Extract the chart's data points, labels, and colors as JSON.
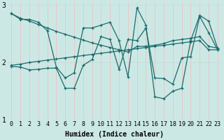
{
  "xlabel": "Humidex (Indice chaleur)",
  "background_color": "#cce8e5",
  "grid_color_v": "#e8c8c8",
  "grid_color_h": "#c8dcd8",
  "line_color": "#1a6b6b",
  "xlim": [
    -0.5,
    23.5
  ],
  "ylim": [
    1,
    3.05
  ],
  "yticks": [
    1,
    2,
    3
  ],
  "xticks": [
    0,
    1,
    2,
    3,
    4,
    5,
    6,
    7,
    8,
    9,
    10,
    11,
    12,
    13,
    14,
    15,
    16,
    17,
    18,
    19,
    20,
    21,
    22,
    23
  ],
  "series_smooth": [
    [
      2.85,
      2.77,
      2.72,
      2.66,
      2.6,
      2.54,
      2.49,
      2.44,
      2.39,
      2.34,
      2.3,
      2.26,
      2.22,
      2.18,
      2.28,
      2.28,
      2.3,
      2.33,
      2.38,
      2.4,
      2.42,
      2.45,
      2.28,
      2.25
    ],
    [
      1.95,
      1.97,
      2.0,
      2.02,
      2.04,
      2.06,
      2.08,
      2.1,
      2.12,
      2.14,
      2.16,
      2.18,
      2.2,
      2.22,
      2.24,
      2.26,
      2.28,
      2.3,
      2.32,
      2.34,
      2.36,
      2.38,
      2.22,
      2.22
    ]
  ],
  "series_zigzag": [
    [
      2.85,
      2.75,
      2.75,
      2.7,
      2.55,
      1.92,
      1.73,
      1.82,
      2.6,
      2.6,
      2.65,
      2.7,
      2.38,
      1.75,
      2.95,
      2.65,
      1.4,
      1.37,
      1.5,
      1.55,
      2.38,
      2.82,
      2.72,
      2.25
    ],
    [
      1.93,
      1.92,
      1.87,
      1.88,
      1.9,
      1.9,
      1.55,
      1.55,
      1.95,
      2.05,
      2.45,
      2.4,
      1.88,
      2.4,
      2.38,
      2.6,
      1.73,
      1.72,
      1.62,
      2.08,
      2.1,
      2.8,
      2.52,
      2.22
    ]
  ]
}
